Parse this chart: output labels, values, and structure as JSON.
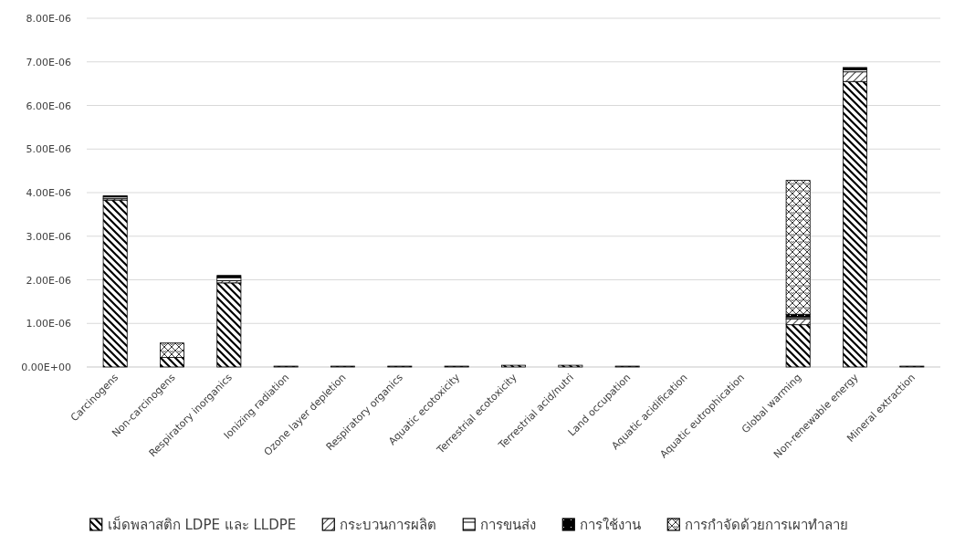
{
  "chart_data": {
    "type": "bar",
    "stacked": true,
    "categories": [
      "Carcinogens",
      "Non-carcinogens",
      "Respiratory inorganics",
      "Ionizing radiation",
      "Ozone layer depletion",
      "Respiratory organics",
      "Aquatic ecotoxicity",
      "Terrestrial ecotoxicity",
      "Terrestrial acid/nutri",
      "Land occupation",
      "Aquatic acidification",
      "Aquatic eutrophication",
      "Global warming",
      "Non-renewable energy",
      "Mineral extraction"
    ],
    "series": [
      {
        "name": "เม็ดพลาสติก LDPE และ LLDPE",
        "color": "#000000",
        "values": [
          3.83e-06,
          2.2e-07,
          1.93e-06,
          2e-08,
          2e-08,
          2e-08,
          2e-08,
          4e-08,
          4e-08,
          2e-08,
          0,
          0,
          9.7e-07,
          6.55e-06,
          2e-08
        ]
      },
      {
        "name": "กระบวนการผลิต",
        "color": "#000000",
        "values": [
          3e-08,
          0,
          5e-08,
          0,
          0,
          0,
          0,
          0,
          0,
          0,
          0,
          0,
          1.3e-07,
          2.2e-07,
          0
        ]
      },
      {
        "name": "การขนส่ง",
        "color": "#000000",
        "values": [
          4e-08,
          0,
          7e-08,
          0,
          0,
          0,
          0,
          0,
          0,
          0,
          0,
          0,
          5e-08,
          5e-08,
          0
        ]
      },
      {
        "name": "การใช้งาน",
        "color": "#000000",
        "values": [
          3e-08,
          0,
          5e-08,
          0,
          0,
          0,
          0,
          0,
          0,
          0,
          0,
          0,
          6e-08,
          5e-08,
          0
        ]
      },
      {
        "name": "การกำจัดด้วยการเผาทำลาย",
        "color": "#000000",
        "values": [
          0,
          3.3e-07,
          0,
          0,
          0,
          0,
          0,
          0,
          0,
          0,
          0,
          0,
          3.07e-06,
          0,
          0
        ]
      }
    ],
    "ylim": [
      0,
      8e-06
    ],
    "yticks": [
      {
        "value": 0,
        "label": "0.00E+00"
      },
      {
        "value": 1e-06,
        "label": "1.00E-06"
      },
      {
        "value": 2e-06,
        "label": "2.00E-06"
      },
      {
        "value": 3e-06,
        "label": "3.00E-06"
      },
      {
        "value": 4e-06,
        "label": "4.00E-06"
      },
      {
        "value": 5e-06,
        "label": "5.00E-06"
      },
      {
        "value": 6e-06,
        "label": "6.00E-06"
      },
      {
        "value": 7e-06,
        "label": "7.00E-06"
      },
      {
        "value": 8e-06,
        "label": "8.00E-06"
      }
    ],
    "grid": "y",
    "legend": "bottom"
  }
}
